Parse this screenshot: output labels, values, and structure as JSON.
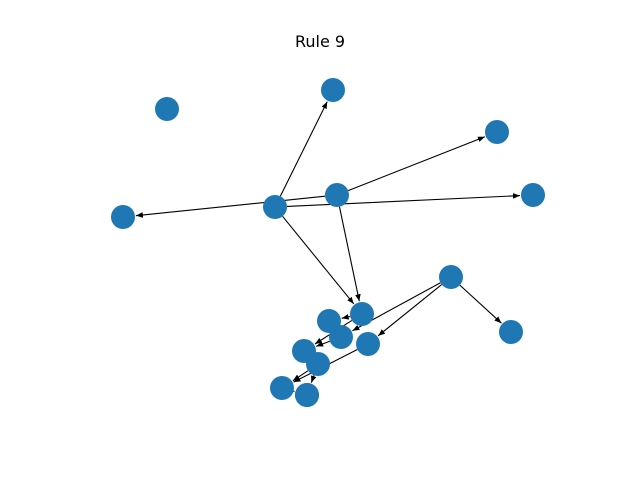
{
  "title": "Rule 9",
  "node_color": "#1f77b4",
  "edge_color": "#000000",
  "nodes": [
    {
      "id": "a"
    },
    {
      "id": "b"
    },
    {
      "id": "c"
    },
    {
      "id": "d"
    },
    {
      "id": "e"
    },
    {
      "id": "f"
    },
    {
      "id": "g"
    },
    {
      "id": "h"
    },
    {
      "id": "i"
    },
    {
      "id": "j"
    },
    {
      "id": "k"
    },
    {
      "id": "l"
    },
    {
      "id": "m"
    },
    {
      "id": "n"
    },
    {
      "id": "o"
    },
    {
      "id": "p"
    },
    {
      "id": "q"
    },
    {
      "id": "r"
    }
  ],
  "edges": [
    {
      "from": "f",
      "to": "b"
    },
    {
      "from": "f",
      "to": "e"
    },
    {
      "from": "f",
      "to": "j"
    },
    {
      "from": "g",
      "to": "c"
    },
    {
      "from": "g",
      "to": "d"
    },
    {
      "from": "g",
      "to": "j"
    },
    {
      "from": "i",
      "to": "h"
    },
    {
      "from": "i",
      "to": "m"
    },
    {
      "from": "i",
      "to": "k"
    },
    {
      "from": "j",
      "to": "n"
    },
    {
      "from": "k",
      "to": "p"
    },
    {
      "from": "o",
      "to": "q"
    },
    {
      "from": "p",
      "to": "q"
    }
  ]
}
